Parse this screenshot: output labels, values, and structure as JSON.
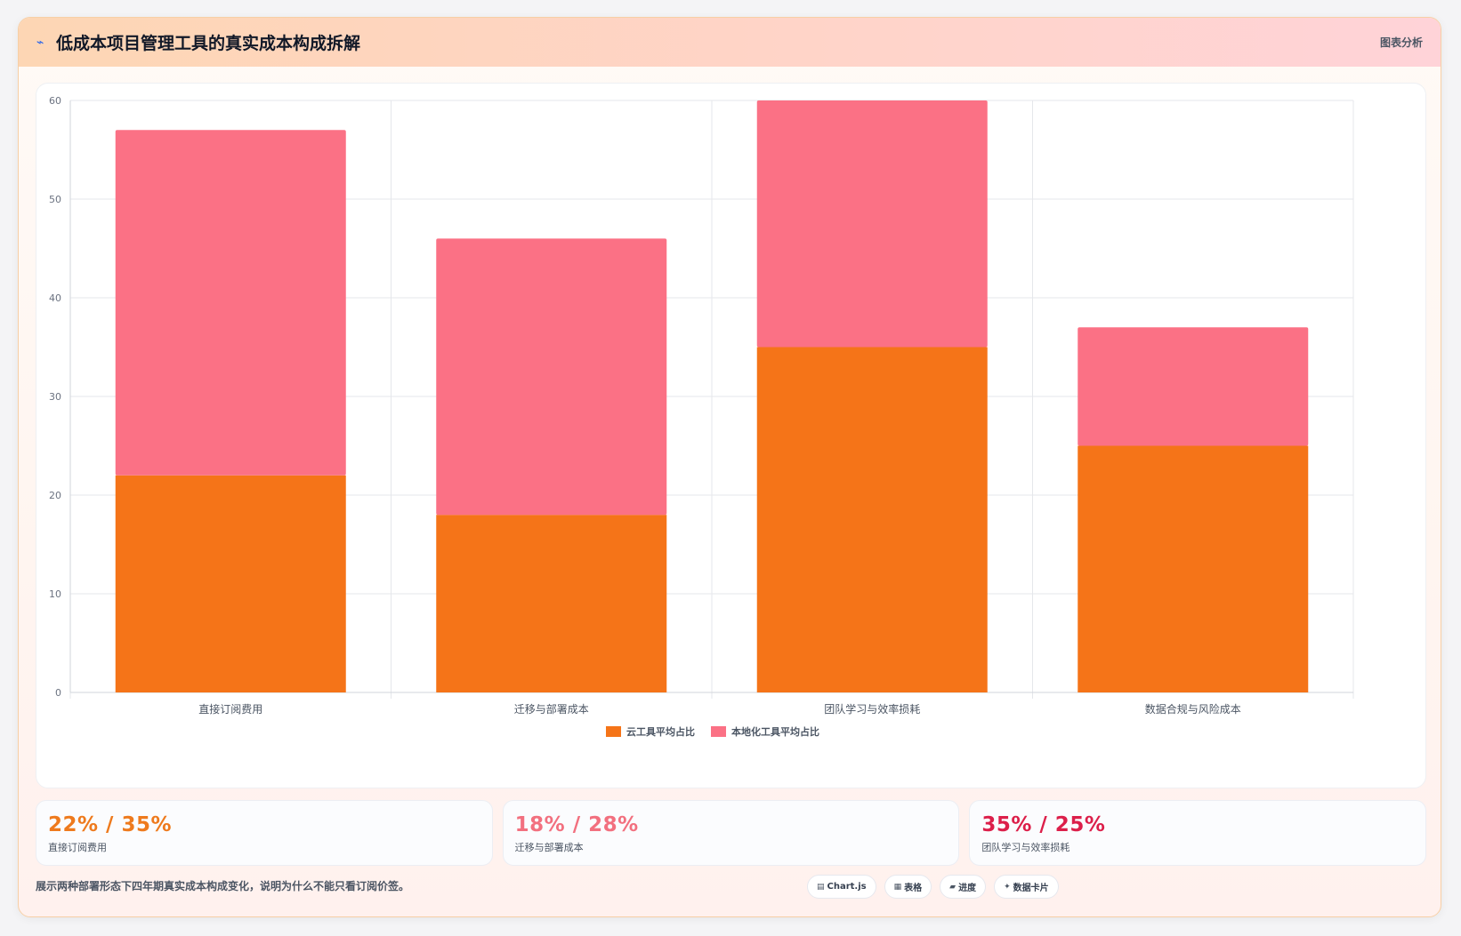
{
  "header": {
    "icon": "chart-icon",
    "title": "低成本项目管理工具的真实成本构成拆解",
    "tag": "图表分析"
  },
  "chart_data": {
    "type": "bar",
    "stacked": true,
    "categories": [
      "直接订阅费用",
      "迁移与部署成本",
      "团队学习与效率损耗",
      "数据合规与风险成本"
    ],
    "series": [
      {
        "name": "云工具平均占比",
        "values": [
          22,
          18,
          35,
          25
        ],
        "color": "#f57418"
      },
      {
        "name": "本地化工具平均占比",
        "values": [
          35,
          28,
          25,
          12
        ],
        "color": "#fb7185"
      }
    ],
    "ylim": [
      0,
      60
    ],
    "yticks": [
      0,
      10,
      20,
      30,
      40,
      50,
      60
    ],
    "grid": true,
    "legend": "bottom"
  },
  "stats": [
    {
      "value": "22% / 35%",
      "label": "直接订阅费用",
      "color": "#ee7a1d"
    },
    {
      "value": "18% / 28%",
      "label": "迁移与部署成本",
      "color": "#f2707f"
    },
    {
      "value": "35% / 25%",
      "label": "团队学习与效率损耗",
      "color": "#dc1f4a"
    }
  ],
  "footer": {
    "note": "展示两种部署形态下四年期真实成本构成变化，说明为什么不能只看订阅价签。",
    "chips": [
      {
        "icon": "▤",
        "icon_name": "chart-icon",
        "label": "Chart.js"
      },
      {
        "icon": "▦",
        "icon_name": "table-icon",
        "label": "表格"
      },
      {
        "icon": "▰",
        "icon_name": "progress-icon",
        "label": "进度"
      },
      {
        "icon": "✦",
        "icon_name": "sparkle-icon",
        "label": "数据卡片"
      }
    ]
  }
}
